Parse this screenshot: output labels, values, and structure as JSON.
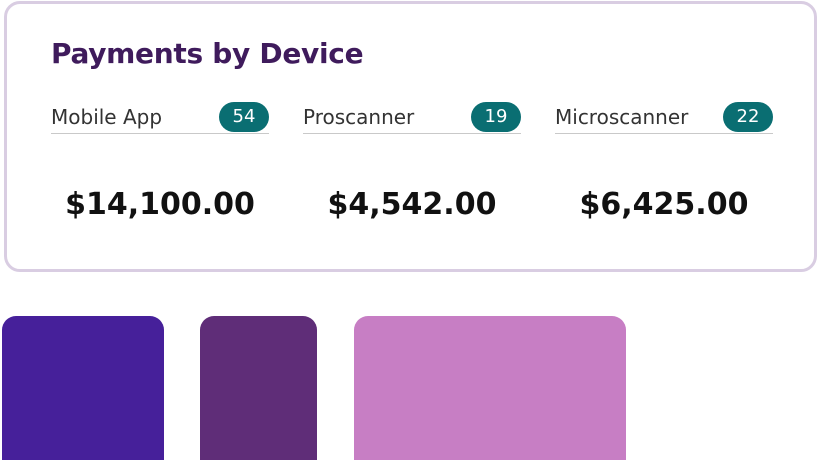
{
  "title": "Payments by Device",
  "colors": {
    "title": "#3f1b5c",
    "badge": "#0a6e72",
    "border": "#d9cde2",
    "swatches": [
      "#46209a",
      "#5f2d78",
      "#c77ec4"
    ]
  },
  "devices": [
    {
      "name": "Mobile App",
      "count": "54",
      "amount": "$14,100.00"
    },
    {
      "name": "Proscanner",
      "count": "19",
      "amount": "$4,542.00"
    },
    {
      "name": "Microscanner",
      "count": "22",
      "amount": "$6,425.00"
    }
  ]
}
